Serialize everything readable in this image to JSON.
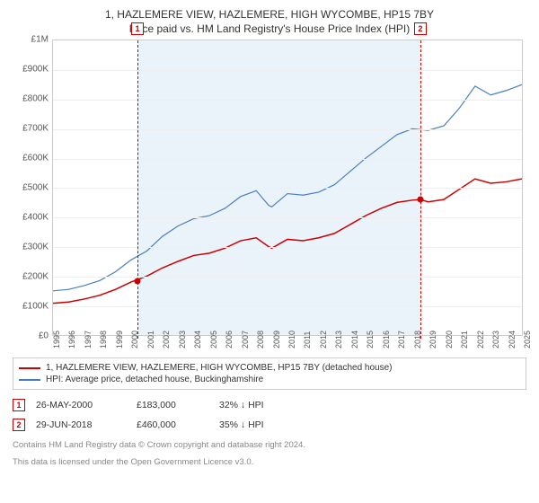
{
  "title1": "1, HAZLEMERE VIEW, HAZLEMERE, HIGH WYCOMBE, HP15 7BY",
  "title2": "Price paid vs. HM Land Registry's House Price Index (HPI)",
  "chart": {
    "type": "line",
    "background_color": "#ffffff",
    "grid_color": "#eeeeee",
    "border_color": "#cccccc",
    "ylim": [
      0,
      1000000
    ],
    "yticks": [
      0,
      100000,
      200000,
      300000,
      400000,
      500000,
      600000,
      700000,
      800000,
      900000,
      1000000
    ],
    "ytick_labels": [
      "£0",
      "£100K",
      "£200K",
      "£300K",
      "£400K",
      "£500K",
      "£600K",
      "£700K",
      "£800K",
      "£900K",
      "£1M"
    ],
    "xlim": [
      1995,
      2025
    ],
    "xtick_step": 1,
    "band": {
      "start": 2000.4,
      "end": 2018.5,
      "color": "#e3eef8"
    },
    "series": [
      {
        "name": "property",
        "label": "1, HAZLEMERE VIEW, HAZLEMERE, HIGH WYCOMBE, HP15 7BY (detached house)",
        "color": "#cc0000",
        "line_width": 1.5,
        "data": [
          [
            1995,
            108000
          ],
          [
            1996,
            112000
          ],
          [
            1997,
            122000
          ],
          [
            1998,
            135000
          ],
          [
            1999,
            155000
          ],
          [
            2000,
            180000
          ],
          [
            2001,
            200000
          ],
          [
            2002,
            228000
          ],
          [
            2003,
            250000
          ],
          [
            2004,
            270000
          ],
          [
            2005,
            278000
          ],
          [
            2006,
            295000
          ],
          [
            2007,
            320000
          ],
          [
            2008,
            330000
          ],
          [
            2008.8,
            300000
          ],
          [
            2009,
            295000
          ],
          [
            2010,
            325000
          ],
          [
            2011,
            320000
          ],
          [
            2012,
            330000
          ],
          [
            2013,
            345000
          ],
          [
            2014,
            375000
          ],
          [
            2015,
            405000
          ],
          [
            2016,
            430000
          ],
          [
            2017,
            450000
          ],
          [
            2018,
            458000
          ],
          [
            2018.5,
            460000
          ],
          [
            2019,
            452000
          ],
          [
            2020,
            460000
          ],
          [
            2021,
            495000
          ],
          [
            2022,
            530000
          ],
          [
            2023,
            515000
          ],
          [
            2024,
            520000
          ],
          [
            2025,
            530000
          ]
        ]
      },
      {
        "name": "hpi",
        "label": "HPI: Average price, detached house, Buckinghamshire",
        "color": "#4a7ebb",
        "line_width": 1.2,
        "data": [
          [
            1995,
            150000
          ],
          [
            1996,
            155000
          ],
          [
            1997,
            168000
          ],
          [
            1998,
            185000
          ],
          [
            1999,
            215000
          ],
          [
            2000,
            255000
          ],
          [
            2001,
            285000
          ],
          [
            2002,
            335000
          ],
          [
            2003,
            370000
          ],
          [
            2004,
            395000
          ],
          [
            2005,
            405000
          ],
          [
            2006,
            430000
          ],
          [
            2007,
            470000
          ],
          [
            2008,
            490000
          ],
          [
            2008.8,
            440000
          ],
          [
            2009,
            435000
          ],
          [
            2010,
            480000
          ],
          [
            2011,
            475000
          ],
          [
            2012,
            485000
          ],
          [
            2013,
            510000
          ],
          [
            2014,
            555000
          ],
          [
            2015,
            600000
          ],
          [
            2016,
            640000
          ],
          [
            2017,
            680000
          ],
          [
            2018,
            700000
          ],
          [
            2019,
            695000
          ],
          [
            2020,
            710000
          ],
          [
            2021,
            770000
          ],
          [
            2022,
            845000
          ],
          [
            2023,
            815000
          ],
          [
            2024,
            830000
          ],
          [
            2025,
            850000
          ]
        ]
      }
    ],
    "markers": [
      {
        "n": "1",
        "x": 2000.4,
        "price": 183000,
        "color": "#cc0000"
      },
      {
        "n": "2",
        "x": 2018.5,
        "price": 460000,
        "color": "#cc0000"
      }
    ]
  },
  "legend": {
    "items": [
      {
        "color": "#cc0000",
        "text": "1, HAZLEMERE VIEW, HAZLEMERE, HIGH WYCOMBE, HP15 7BY (detached house)"
      },
      {
        "color": "#4a7ebb",
        "text": "HPI: Average price, detached house, Buckinghamshire"
      }
    ]
  },
  "events": [
    {
      "n": "1",
      "color": "#cc0000",
      "date": "26-MAY-2000",
      "price": "£183,000",
      "diff": "32% ↓ HPI"
    },
    {
      "n": "2",
      "color": "#cc0000",
      "date": "29-JUN-2018",
      "price": "£460,000",
      "diff": "35% ↓ HPI"
    }
  ],
  "footer1": "Contains HM Land Registry data © Crown copyright and database right 2024.",
  "footer2": "This data is licensed under the Open Government Licence v3.0."
}
